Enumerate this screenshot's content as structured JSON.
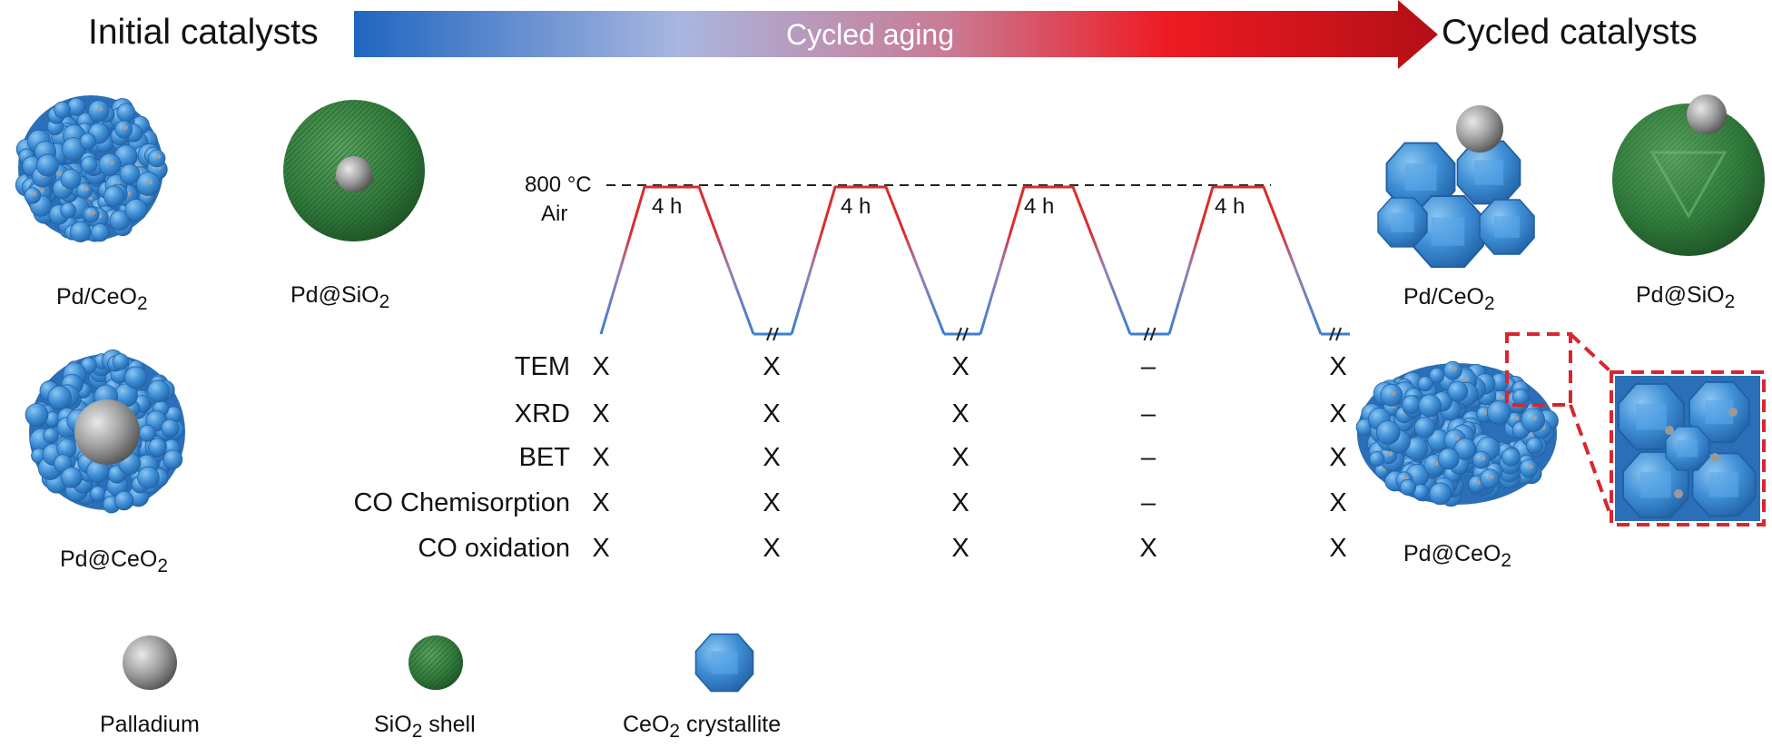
{
  "header": {
    "initial": "Initial catalysts",
    "arrow_label": "Cycled aging",
    "cycled": "Cycled catalysts"
  },
  "initial_catalysts": {
    "pd_ceo2": {
      "main": "Pd/CeO",
      "sub": "2"
    },
    "pd_sio2": {
      "main": "Pd@SiO",
      "sub": "2"
    },
    "pd_at_ceo2": {
      "main": "Pd@CeO",
      "sub": "2"
    }
  },
  "cycled_catalysts": {
    "pd_ceo2": {
      "main": "Pd/CeO",
      "sub": "2"
    },
    "pd_sio2": {
      "main": "Pd@SiO",
      "sub": "2"
    },
    "pd_at_ceo2": {
      "main": "Pd@CeO",
      "sub": "2"
    }
  },
  "profile": {
    "temperature": "800 °C",
    "atmosphere": "Air",
    "holds": [
      "4 h",
      "4 h",
      "4 h",
      "4 h"
    ]
  },
  "characterization": {
    "rows": [
      {
        "label": "TEM",
        "marks": [
          "X",
          "X",
          "X",
          "–",
          "X"
        ]
      },
      {
        "label": "XRD",
        "marks": [
          "X",
          "X",
          "X",
          "–",
          "X"
        ]
      },
      {
        "label": "BET",
        "marks": [
          "X",
          "X",
          "X",
          "–",
          "X"
        ]
      },
      {
        "label": "CO Chemisorption",
        "marks": [
          "X",
          "X",
          "X",
          "–",
          "X"
        ]
      },
      {
        "label": "CO oxidation",
        "marks": [
          "X",
          "X",
          "X",
          "X",
          "X"
        ]
      }
    ]
  },
  "legend": {
    "palladium": "Palladium",
    "sio2_shell": {
      "pre": "SiO",
      "sub": "2",
      "post": " shell"
    },
    "ceo2_crystallite": {
      "pre": "CeO",
      "sub": "2",
      "post": " crystallite"
    }
  },
  "colors": {
    "arrow_start": "#1f6fc4",
    "arrow_mid": "#b9b3d9",
    "arrow_end": "#c8101a",
    "ceria_blue": "#3f8fd6",
    "silica_green": "#2f7a3a",
    "palladium_gray": "#9a9a9a",
    "heating_red": "#d92d2d",
    "cooling_blue": "#3b7fd0",
    "zoom_box_red": "#d8262f"
  },
  "icons": [
    "palladium-sphere-icon",
    "sio2-shell-sphere-icon",
    "ceo2-crystallite-icon"
  ]
}
